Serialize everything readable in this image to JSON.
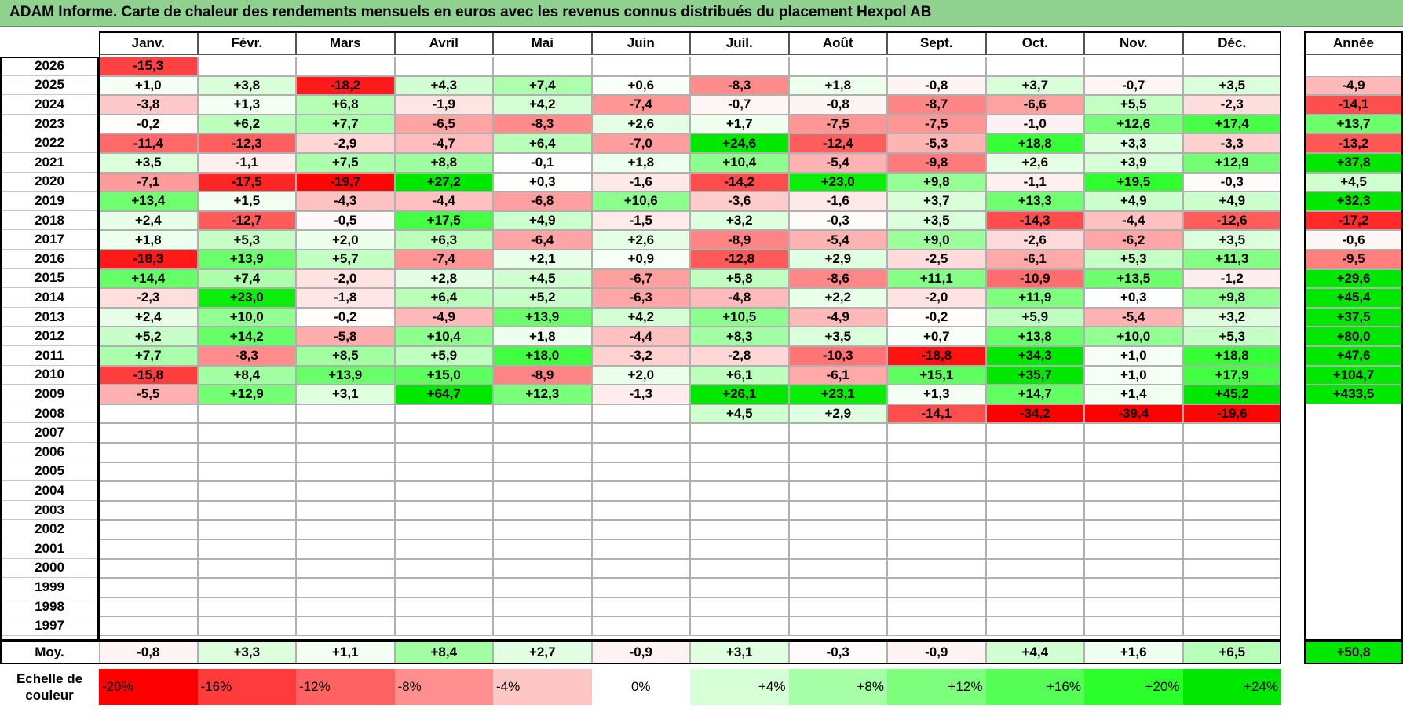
{
  "title": "ADAM Informe. Carte de chaleur des rendements mensuels en euros avec les revenus connus distribués du placement Hexpol AB",
  "chart_data": {
    "type": "heatmap",
    "months": [
      "Janv.",
      "Févr.",
      "Mars",
      "Avril",
      "Mai",
      "Juin",
      "Juil.",
      "Août",
      "Sept.",
      "Oct.",
      "Nov.",
      "Déc."
    ],
    "year_header": "Année",
    "rows": [
      {
        "year": "2026",
        "values": [
          -15.3,
          null,
          null,
          null,
          null,
          null,
          null,
          null,
          null,
          null,
          null,
          null
        ],
        "annual": null
      },
      {
        "year": "2025",
        "values": [
          1.0,
          3.8,
          -18.2,
          4.3,
          7.4,
          0.6,
          -8.3,
          1.8,
          -0.8,
          3.7,
          -0.7,
          3.5
        ],
        "annual": -4.9
      },
      {
        "year": "2024",
        "values": [
          -3.8,
          1.3,
          6.8,
          -1.9,
          4.2,
          -7.4,
          -0.7,
          -0.8,
          -8.7,
          -6.6,
          5.5,
          -2.3
        ],
        "annual": -14.1
      },
      {
        "year": "2023",
        "values": [
          -0.2,
          6.2,
          7.7,
          -6.5,
          -8.3,
          2.6,
          1.7,
          -7.5,
          -7.5,
          -1.0,
          12.6,
          17.4
        ],
        "annual": 13.7
      },
      {
        "year": "2022",
        "values": [
          -11.4,
          -12.3,
          -2.9,
          -4.7,
          6.4,
          -7.0,
          24.6,
          -12.4,
          -5.3,
          18.8,
          3.3,
          -3.3
        ],
        "annual": -13.2
      },
      {
        "year": "2021",
        "values": [
          3.5,
          -1.1,
          7.5,
          8.8,
          -0.1,
          1.8,
          10.4,
          -5.4,
          -9.8,
          2.6,
          3.9,
          12.9
        ],
        "annual": 37.8
      },
      {
        "year": "2020",
        "values": [
          -7.1,
          -17.5,
          -19.7,
          27.2,
          0.3,
          -1.6,
          -14.2,
          23.0,
          9.8,
          -1.1,
          19.5,
          -0.3
        ],
        "annual": 4.5
      },
      {
        "year": "2019",
        "values": [
          13.4,
          1.5,
          -4.3,
          -4.4,
          -6.8,
          10.6,
          -3.6,
          -1.6,
          3.7,
          13.3,
          4.9,
          4.9
        ],
        "annual": 32.3
      },
      {
        "year": "2018",
        "values": [
          2.4,
          -12.7,
          -0.5,
          17.5,
          4.9,
          -1.5,
          3.2,
          -0.3,
          3.5,
          -14.3,
          -4.4,
          -12.6
        ],
        "annual": -17.2
      },
      {
        "year": "2017",
        "values": [
          1.8,
          5.3,
          2.0,
          6.3,
          -6.4,
          2.6,
          -8.9,
          -5.4,
          9.0,
          -2.6,
          -6.2,
          3.5
        ],
        "annual": -0.6
      },
      {
        "year": "2016",
        "values": [
          -18.3,
          13.9,
          5.7,
          -7.4,
          2.1,
          0.9,
          -12.8,
          2.9,
          -2.5,
          -6.1,
          5.3,
          11.3
        ],
        "annual": -9.5
      },
      {
        "year": "2015",
        "values": [
          14.4,
          7.4,
          -2.0,
          2.8,
          4.5,
          -6.7,
          5.8,
          -8.6,
          11.1,
          -10.9,
          13.5,
          -1.2
        ],
        "annual": 29.6
      },
      {
        "year": "2014",
        "values": [
          -2.3,
          23.0,
          -1.8,
          6.4,
          5.2,
          -6.3,
          -4.8,
          2.2,
          -2.0,
          11.9,
          0.3,
          9.8
        ],
        "annual": 45.4
      },
      {
        "year": "2013",
        "values": [
          2.4,
          10.0,
          -0.2,
          -4.9,
          13.9,
          4.2,
          10.5,
          -4.9,
          -0.2,
          5.9,
          -5.4,
          3.2
        ],
        "annual": 37.5
      },
      {
        "year": "2012",
        "values": [
          5.2,
          14.2,
          -5.8,
          10.4,
          1.8,
          -4.4,
          8.3,
          3.5,
          0.7,
          13.8,
          10.0,
          5.3
        ],
        "annual": 80.0
      },
      {
        "year": "2011",
        "values": [
          7.7,
          -8.3,
          8.5,
          5.9,
          18.0,
          -3.2,
          -2.8,
          -10.3,
          -18.8,
          34.3,
          1.0,
          18.8
        ],
        "annual": 47.6
      },
      {
        "year": "2010",
        "values": [
          -15.8,
          8.4,
          13.9,
          15.0,
          -8.9,
          2.0,
          6.1,
          -6.1,
          15.1,
          35.7,
          1.0,
          17.9
        ],
        "annual": 104.7
      },
      {
        "year": "2009",
        "values": [
          -5.5,
          12.9,
          3.1,
          64.7,
          12.3,
          -1.3,
          26.1,
          23.1,
          1.3,
          14.7,
          1.4,
          45.2
        ],
        "annual": 433.5
      },
      {
        "year": "2008",
        "values": [
          null,
          null,
          null,
          null,
          null,
          null,
          4.5,
          2.9,
          -14.1,
          -34.2,
          -39.4,
          -19.6
        ],
        "annual": null
      },
      {
        "year": "2007",
        "values": [
          null,
          null,
          null,
          null,
          null,
          null,
          null,
          null,
          null,
          null,
          null,
          null
        ],
        "annual": null
      },
      {
        "year": "2006",
        "values": [
          null,
          null,
          null,
          null,
          null,
          null,
          null,
          null,
          null,
          null,
          null,
          null
        ],
        "annual": null
      },
      {
        "year": "2005",
        "values": [
          null,
          null,
          null,
          null,
          null,
          null,
          null,
          null,
          null,
          null,
          null,
          null
        ],
        "annual": null
      },
      {
        "year": "2004",
        "values": [
          null,
          null,
          null,
          null,
          null,
          null,
          null,
          null,
          null,
          null,
          null,
          null
        ],
        "annual": null
      },
      {
        "year": "2003",
        "values": [
          null,
          null,
          null,
          null,
          null,
          null,
          null,
          null,
          null,
          null,
          null,
          null
        ],
        "annual": null
      },
      {
        "year": "2002",
        "values": [
          null,
          null,
          null,
          null,
          null,
          null,
          null,
          null,
          null,
          null,
          null,
          null
        ],
        "annual": null
      },
      {
        "year": "2001",
        "values": [
          null,
          null,
          null,
          null,
          null,
          null,
          null,
          null,
          null,
          null,
          null,
          null
        ],
        "annual": null
      },
      {
        "year": "2000",
        "values": [
          null,
          null,
          null,
          null,
          null,
          null,
          null,
          null,
          null,
          null,
          null,
          null
        ],
        "annual": null
      },
      {
        "year": "1999",
        "values": [
          null,
          null,
          null,
          null,
          null,
          null,
          null,
          null,
          null,
          null,
          null,
          null
        ],
        "annual": null
      },
      {
        "year": "1998",
        "values": [
          null,
          null,
          null,
          null,
          null,
          null,
          null,
          null,
          null,
          null,
          null,
          null
        ],
        "annual": null
      },
      {
        "year": "1997",
        "values": [
          null,
          null,
          null,
          null,
          null,
          null,
          null,
          null,
          null,
          null,
          null,
          null
        ],
        "annual": null
      }
    ],
    "average": {
      "label": "Moy.",
      "values": [
        -0.8,
        3.3,
        1.1,
        8.4,
        2.7,
        -0.9,
        3.1,
        -0.3,
        -0.9,
        4.4,
        1.6,
        6.5
      ],
      "annual": 50.8
    },
    "color_scale": {
      "label_line1": "Echelle de",
      "label_line2": "couleur",
      "stops": [
        {
          "label": "-20%",
          "value": -20,
          "color": "#ff0000"
        },
        {
          "label": "-16%",
          "value": -16,
          "color": "#ff3b3b"
        },
        {
          "label": "-12%",
          "value": -12,
          "color": "#ff6262"
        },
        {
          "label": "-8%",
          "value": -8,
          "color": "#ff8e8e"
        },
        {
          "label": "-4%",
          "value": -4,
          "color": "#ffc6c6"
        },
        {
          "label": "0%",
          "value": 0,
          "color": "#ffffff"
        },
        {
          "label": "+4%",
          "value": 4,
          "color": "#d6ffd6"
        },
        {
          "label": "+8%",
          "value": 8,
          "color": "#a6ffa6"
        },
        {
          "label": "+12%",
          "value": 12,
          "color": "#7dff7d"
        },
        {
          "label": "+16%",
          "value": 16,
          "color": "#55ff55"
        },
        {
          "label": "+20%",
          "value": 20,
          "color": "#2aff2a"
        },
        {
          "label": "+24%",
          "value": 24,
          "color": "#00e800"
        }
      ]
    }
  }
}
